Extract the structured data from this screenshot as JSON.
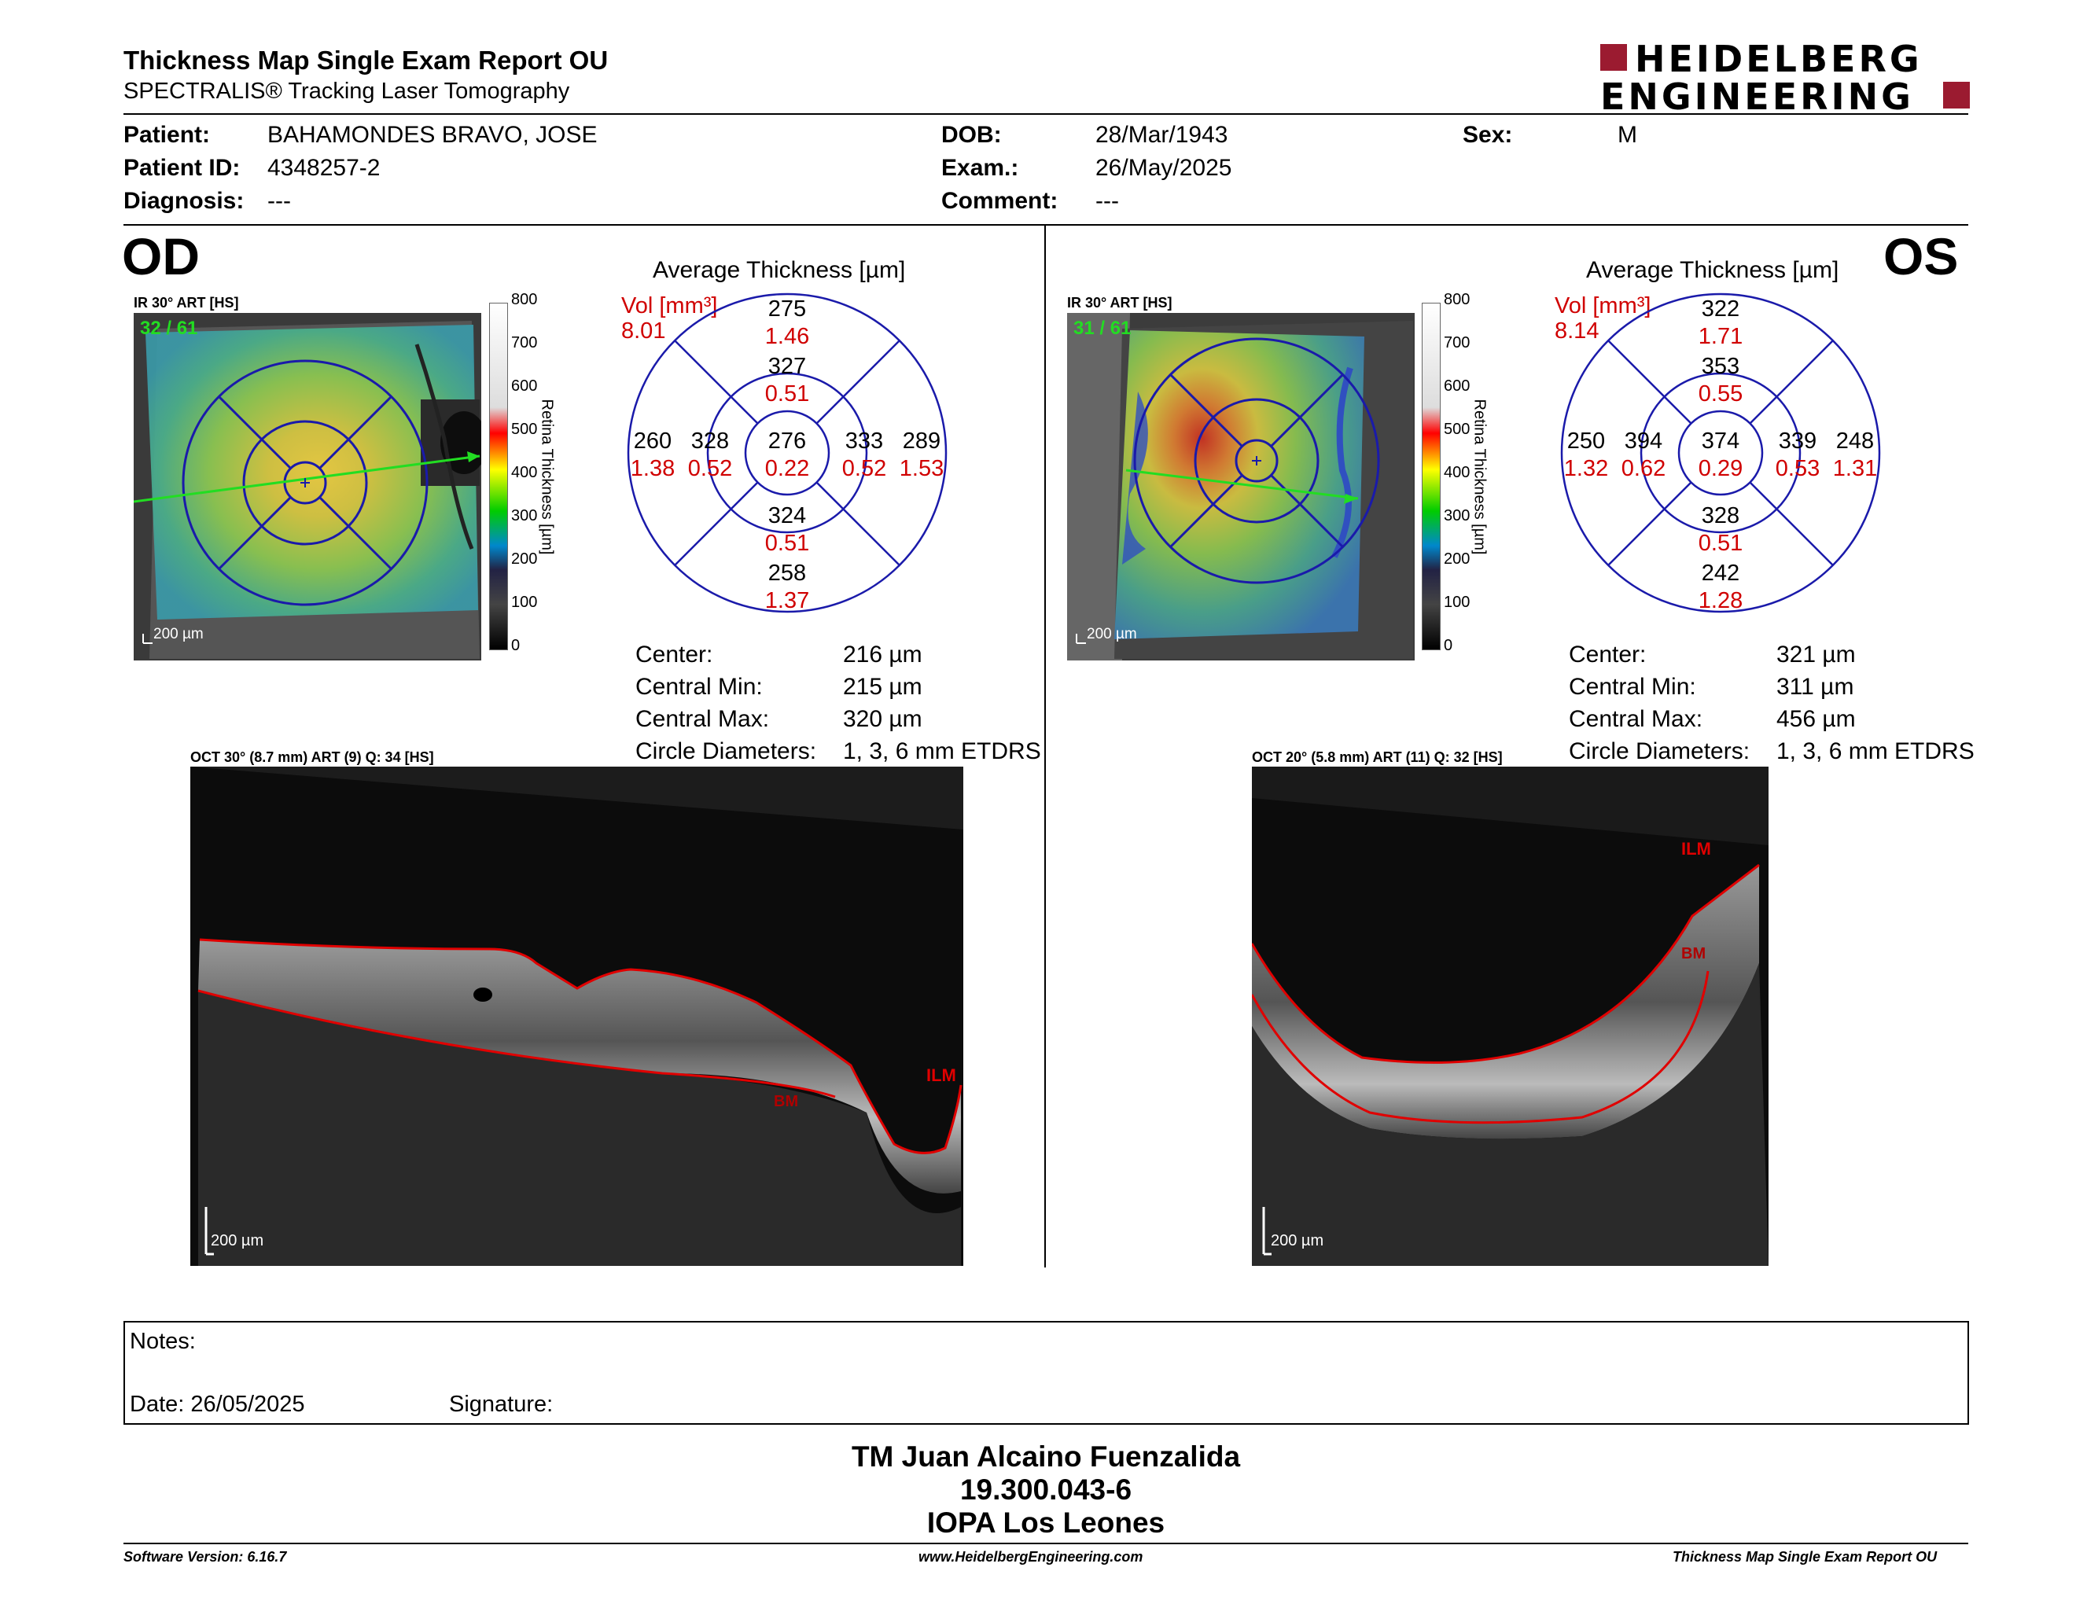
{
  "header": {
    "title": "Thickness Map Single Exam Report OU",
    "subtitle": "SPECTRALIS® Tracking Laser Tomography",
    "logo_line1": "HEIDELBERG",
    "logo_line2": "ENGINEERING"
  },
  "patient": {
    "patient_label": "Patient:",
    "patient_value": "BAHAMONDES BRAVO, JOSE",
    "id_label": "Patient ID:",
    "id_value": "4348257-2",
    "diag_label": "Diagnosis:",
    "diag_value": "---",
    "dob_label": "DOB:",
    "dob_value": "28/Mar/1943",
    "exam_label": "Exam.:",
    "exam_value": "26/May/2025",
    "comment_label": "Comment:",
    "comment_value": "---",
    "sex_label": "Sex:",
    "sex_value": "M"
  },
  "od": {
    "eye": "OD",
    "ir_caption": "IR 30° ART [HS]",
    "frames": "32 / 61",
    "scale": "200 µm",
    "avg_title": "Average Thickness [µm]",
    "vol_label": "Vol [mm³]",
    "vol_value": "8.01",
    "sectors": {
      "outer_sup": [
        "275",
        "1.46"
      ],
      "inner_sup": [
        "327",
        "0.51"
      ],
      "outer_nas_left": [
        "260",
        "1.38"
      ],
      "inner_left": [
        "328",
        "0.52"
      ],
      "center": [
        "276",
        "0.22"
      ],
      "inner_right": [
        "333",
        "0.52"
      ],
      "outer_right": [
        "289",
        "1.53"
      ],
      "inner_inf": [
        "324",
        "0.51"
      ],
      "outer_inf": [
        "258",
        "1.37"
      ]
    },
    "stats": [
      {
        "label": "Center:",
        "value": "216 µm"
      },
      {
        "label": "Central Min:",
        "value": "215 µm"
      },
      {
        "label": "Central Max:",
        "value": "320 µm"
      },
      {
        "label": "Circle Diameters:",
        "value": "1, 3, 6 mm ETDRS"
      }
    ],
    "oct_caption": "OCT 30° (8.7 mm) ART (9) Q: 34 [HS]",
    "oct_scale": "200 µm",
    "ilm": "ILM",
    "bm": "BM"
  },
  "os": {
    "eye": "OS",
    "ir_caption": "IR 30° ART [HS]",
    "frames": "31 / 61",
    "scale": "200 µm",
    "avg_title": "Average Thickness [µm]",
    "vol_label": "Vol [mm³]",
    "vol_value": "8.14",
    "sectors": {
      "outer_sup": [
        "322",
        "1.71"
      ],
      "inner_sup": [
        "353",
        "0.55"
      ],
      "outer_nas_left": [
        "250",
        "1.32"
      ],
      "inner_left": [
        "394",
        "0.62"
      ],
      "center": [
        "374",
        "0.29"
      ],
      "inner_right": [
        "339",
        "0.53"
      ],
      "outer_right": [
        "248",
        "1.31"
      ],
      "inner_inf": [
        "328",
        "0.51"
      ],
      "outer_inf": [
        "242",
        "1.28"
      ]
    },
    "stats": [
      {
        "label": "Center:",
        "value": "321 µm"
      },
      {
        "label": "Central Min:",
        "value": "311 µm"
      },
      {
        "label": "Central Max:",
        "value": "456 µm"
      },
      {
        "label": "Circle Diameters:",
        "value": "1, 3, 6 mm ETDRS"
      }
    ],
    "oct_caption": "OCT 20° (5.8 mm) ART (11) Q: 32 [HS]",
    "oct_scale": "200 µm",
    "ilm": "ILM",
    "bm": "BM"
  },
  "colorbar": {
    "ticks": [
      "800",
      "700",
      "600",
      "500",
      "400",
      "300",
      "200",
      "100",
      "0"
    ],
    "label": "Retina Thickness [µm]"
  },
  "notes": {
    "notes_label": "Notes:",
    "date_label": "Date: 26/05/2025",
    "signature_label": "Signature:"
  },
  "signature": {
    "name": "TM Juan Alcaino Fuenzalida",
    "id": "19.300.043-6",
    "org": "IOPA Los Leones"
  },
  "footer": {
    "version": "Software Version: 6.16.7",
    "website": "www.HeidelbergEngineering.com",
    "report": "Thickness Map Single Exam Report OU"
  },
  "colors": {
    "accent_red": "#d00000",
    "grid_blue": "#1a1aaa",
    "logo_red": "#9b1b30"
  }
}
